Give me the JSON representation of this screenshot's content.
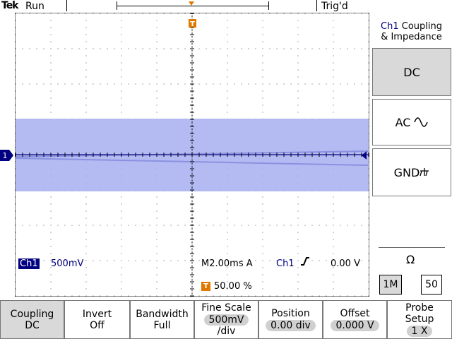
{
  "status": {
    "brand": "Tek",
    "acq_state": "Run",
    "trigger_state": "Trig'd"
  },
  "menu": {
    "title_channel": "Ch1",
    "title_rest": " Coupling",
    "title_line2": "& Impedance",
    "dc_label": "DC",
    "ac_label": "AC",
    "gnd_label": "GND",
    "ohm_label": "Ω",
    "imp_1m": "1M",
    "imp_50": "50"
  },
  "readouts": {
    "channel": "Ch1",
    "volts_per_div": "500mV",
    "timebase": "M2.00ms A",
    "trigger_source": "Ch1",
    "trigger_level": "0.00 V",
    "trigger_position": "50.00 %",
    "channel_marker": "1",
    "trigger_marker": "T"
  },
  "bottom_menu": {
    "coupling_label": "Coupling",
    "coupling_value": "DC",
    "invert_label": "Invert",
    "invert_value": "Off",
    "bandwidth_label": "Bandwidth",
    "bandwidth_value": "Full",
    "fine_label": "Fine Scale",
    "fine_value": "500mV",
    "fine_unit": "/div",
    "position_label": "Position",
    "position_value": "0.00 div",
    "offset_label": "Offset",
    "offset_value": "0.000 V",
    "probe_label1": "Probe",
    "probe_label2": "Setup",
    "probe_value": "1 X"
  },
  "colors": {
    "waveform": "#a7aef0",
    "channel": "#000080",
    "trigger": "#e07800",
    "selected": "#d9d9d9"
  }
}
